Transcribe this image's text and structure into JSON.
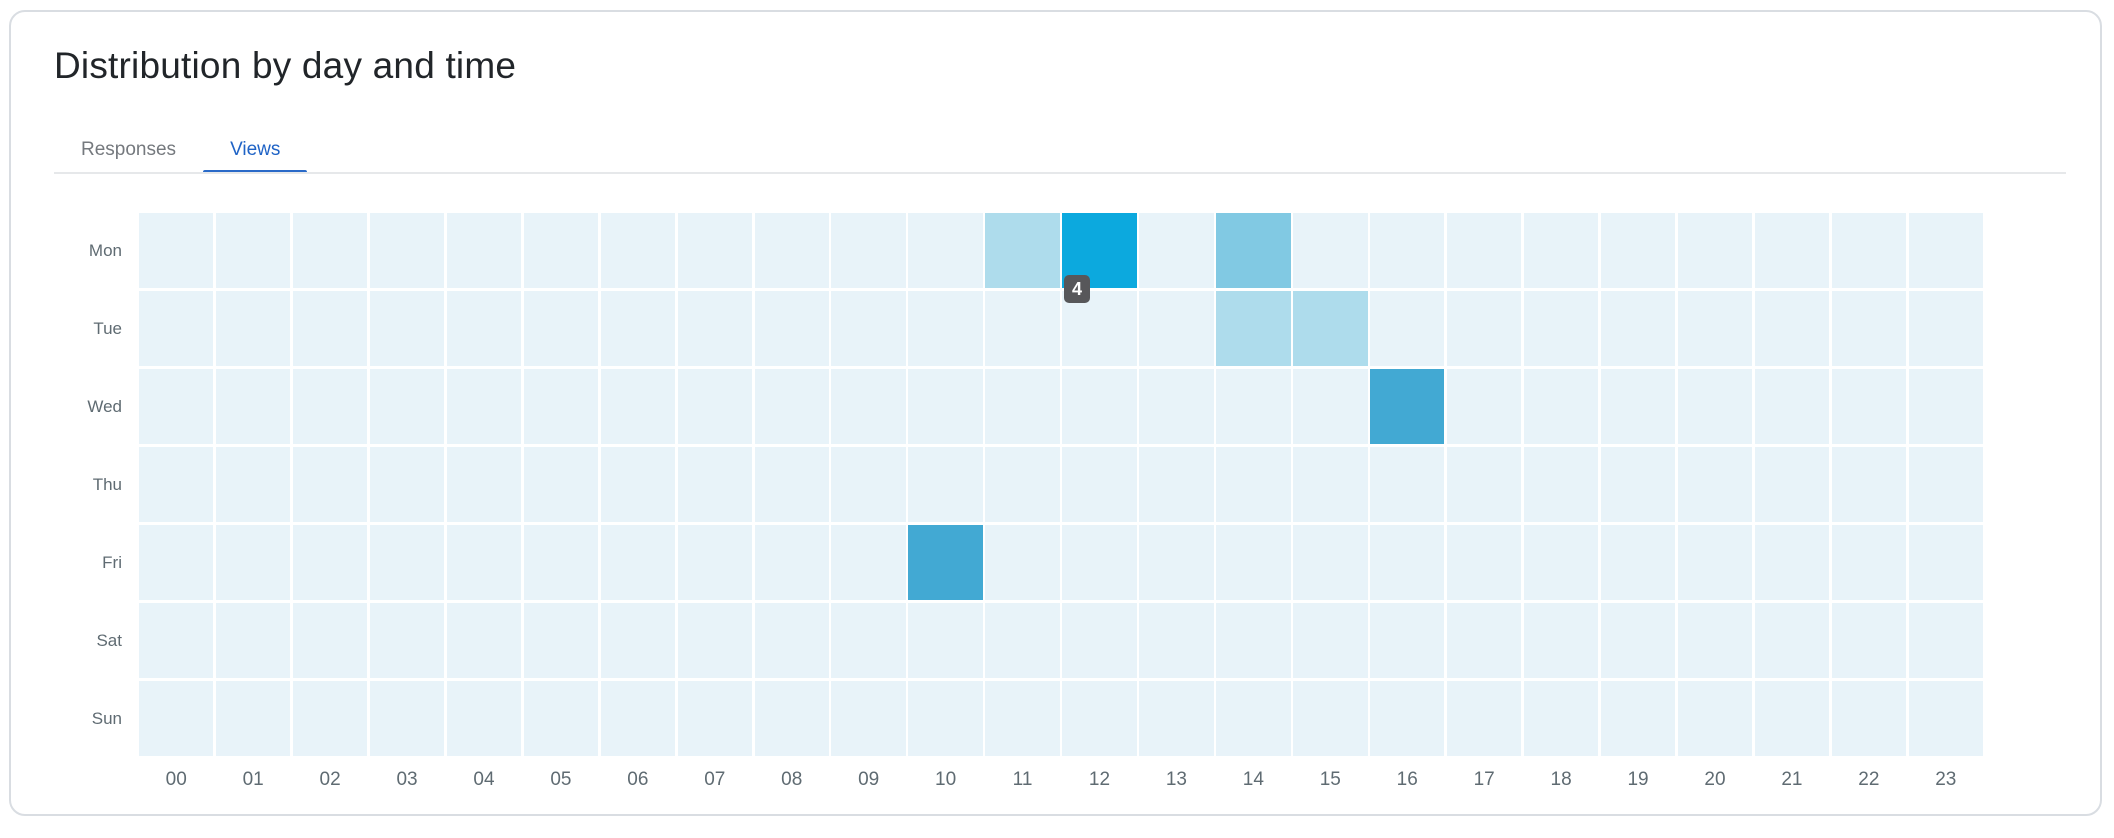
{
  "card": {
    "title": "Distribution by day and time",
    "tabs": [
      {
        "label": "Responses",
        "active": false
      },
      {
        "label": "Views",
        "active": true
      }
    ]
  },
  "chart_data": {
    "type": "heatmap",
    "title": "Distribution by day and time",
    "active_series": "Views",
    "x_labels": [
      "00",
      "01",
      "02",
      "03",
      "04",
      "05",
      "06",
      "07",
      "08",
      "09",
      "10",
      "11",
      "12",
      "13",
      "14",
      "15",
      "16",
      "17",
      "18",
      "19",
      "20",
      "21",
      "22",
      "23"
    ],
    "y_labels": [
      "Mon",
      "Tue",
      "Wed",
      "Thu",
      "Fri",
      "Sat",
      "Sun"
    ],
    "cells": [
      {
        "day": "Mon",
        "hour": "11",
        "value": 1
      },
      {
        "day": "Mon",
        "hour": "12",
        "value": 4
      },
      {
        "day": "Mon",
        "hour": "14",
        "value": 2
      },
      {
        "day": "Tue",
        "hour": "14",
        "value": 1
      },
      {
        "day": "Tue",
        "hour": "15",
        "value": 1
      },
      {
        "day": "Wed",
        "hour": "16",
        "value": 3
      },
      {
        "day": "Fri",
        "hour": "10",
        "value": 3
      }
    ],
    "value_colors": {
      "0": "#E8F3F9",
      "1": "#AEDCEC",
      "2": "#81C9E3",
      "3": "#42A9D3",
      "4": "#0CA9DE"
    },
    "tooltip": {
      "value": "4",
      "day": "Mon",
      "hour": "12"
    },
    "grid": true,
    "legend_position": "none"
  },
  "colors": {
    "accent_blue": "#1F63C6",
    "tab_inactive": "#75797E",
    "axis_label": "#5F6B72",
    "tooltip_bg": "#57575A",
    "card_border": "#D9DDE2",
    "divider": "#E6E8EA"
  }
}
